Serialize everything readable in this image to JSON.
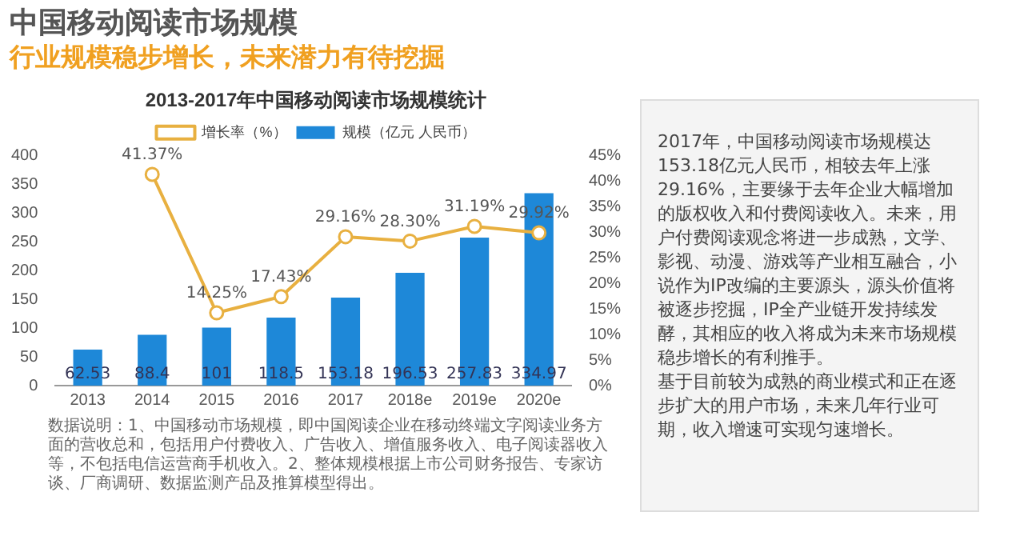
{
  "chart_data": [
    {
      "type": "other",
      "title": "中国移动阅读市场规模",
      "subtitle": "行业规模稳步增长，未来潜力有待挖掘"
    },
    {
      "type": "bar",
      "title": "2013-2017年中国移动阅读市场规模统计",
      "categories": [
        "2013",
        "2014",
        "2015",
        "2016",
        "2017",
        "2018e",
        "2019e",
        "2020e"
      ],
      "series": [
        {
          "name": "规模（亿元 人民币）",
          "type": "bar",
          "color": "#1e88d8",
          "values": [
            62.53,
            88.4,
            101,
            118.5,
            153.18,
            196.53,
            257.83,
            334.97
          ],
          "value_labels": [
            "62.53",
            "88.4",
            "101",
            "118.5",
            "153.18",
            "196.53",
            "257.83",
            "334.97"
          ]
        },
        {
          "name": "增长率（%）",
          "type": "line",
          "axis": "y2",
          "color": "#e8b040",
          "values": [
            null,
            41.37,
            14.25,
            17.43,
            29.16,
            28.3,
            31.19,
            29.92
          ],
          "value_labels": [
            null,
            "41.37%",
            "14.25%",
            "17.43%",
            "29.16%",
            "28.30%",
            "31.19%",
            "29.92%"
          ]
        }
      ],
      "ylim": [
        0,
        400
      ],
      "yticks": [
        0,
        50,
        100,
        150,
        200,
        250,
        300,
        350,
        400
      ],
      "y2lim": [
        0,
        45
      ],
      "y2ticks": [
        {
          "value": 0,
          "label": "0%"
        },
        {
          "value": 5,
          "label": "5%"
        },
        {
          "value": 10,
          "label": "10%"
        },
        {
          "value": 15,
          "label": "15%"
        },
        {
          "value": 20,
          "label": "20%"
        },
        {
          "value": 25,
          "label": "25%"
        },
        {
          "value": 30,
          "label": "30%"
        },
        {
          "value": 35,
          "label": "35%"
        },
        {
          "value": 40,
          "label": "40%"
        },
        {
          "value": 45,
          "label": "45%"
        }
      ],
      "legend": "top",
      "grid": false,
      "marker": "circle",
      "annotations": [
        "数据说明：1、中国移动市场规模，即中国阅读企业在移动终端文字阅读业务方面的营收总和，包括用户付费收入、广告收入、增值服务收入、电子阅读器收入等，不包括电信运营商手机收入。2、整体规模根据上市公司财务报告、专家访谈、厂商调研、数据监测产品及推算模型得出。"
      ]
    },
    {
      "type": "other",
      "annotations": [
        "2017年，中国移动阅读市场规模达153.18亿元人民币，相较去年上涨29.16%，主要缘于去年企业大幅增加的版权收入和付费阅读收入。未来，用户付费阅读观念将进一步成熟，文学、影视、动漫、游戏等产业相互融合，小说作为IP改编的主要源头，源头价值将被逐步挖掘，IP全产业链开发持续发酵，其相应的收入将成为未来市场规模稳步增长的有利推手。",
        "基于目前较为成熟的商业模式和正在逐步扩大的用户市场，未来几年行业可期，收入增速可实现匀速增长。"
      ]
    }
  ]
}
